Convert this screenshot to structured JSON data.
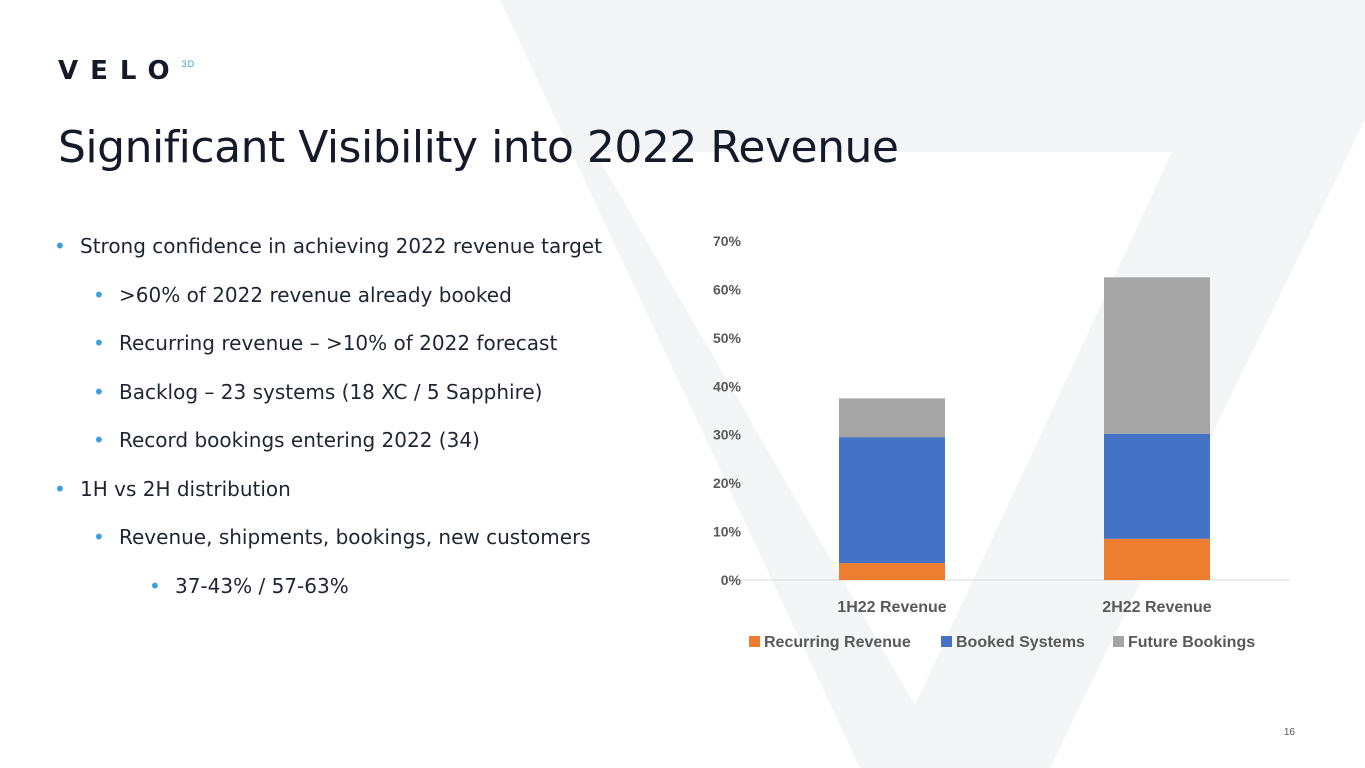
{
  "logo": {
    "text": "VELO",
    "suffix": "3D"
  },
  "title": "Significant Visibility into 2022 Revenue",
  "bullets": [
    {
      "text": "Strong confidence in achieving 2022 revenue target",
      "level": 1
    },
    {
      "text": ">60% of 2022 revenue already booked",
      "level": 2
    },
    {
      "text": "Recurring revenue – >10% of 2022 forecast",
      "level": 2
    },
    {
      "text": "Backlog – 23 systems (18 XC / 5 Sapphire)",
      "level": 2
    },
    {
      "text": "Record bookings entering 2022 (34)",
      "level": 2
    },
    {
      "text": "1H vs 2H distribution",
      "level": 1
    },
    {
      "text": "Revenue, shipments, bookings, new customers",
      "level": 2
    },
    {
      "text": "37-43% / 57-63%",
      "level": 3
    }
  ],
  "bullet_char": "•",
  "page_number": "16",
  "chart_data": {
    "type": "bar",
    "stacked": true,
    "categories": [
      "1H22 Revenue",
      "2H22 Revenue"
    ],
    "series": [
      {
        "name": "Recurring Revenue",
        "values": [
          3.5,
          8.5
        ],
        "color": "#ed7d31"
      },
      {
        "name": "Booked Systems",
        "values": [
          26.0,
          21.7
        ],
        "color": "#4472c4"
      },
      {
        "name": "Future Bookings",
        "values": [
          8.0,
          32.3
        ],
        "color": "#a5a5a5"
      }
    ],
    "yticks": [
      "0%",
      "10%",
      "20%",
      "30%",
      "40%",
      "50%",
      "60%",
      "70%"
    ],
    "ylim": [
      0,
      70
    ],
    "legend": "bottom",
    "grid": false
  }
}
